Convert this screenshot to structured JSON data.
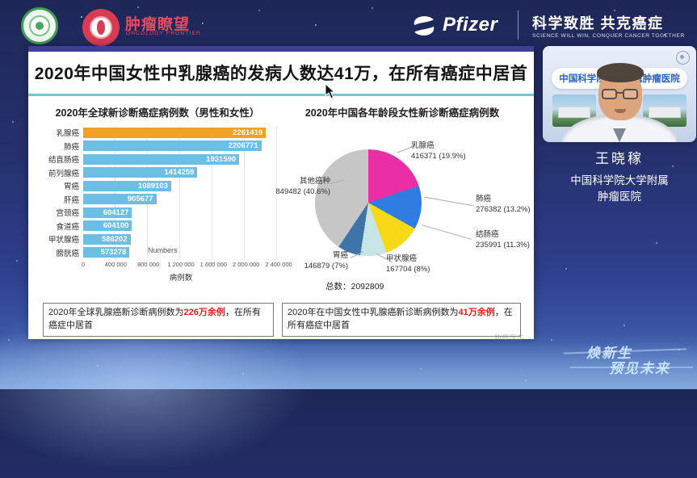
{
  "header": {
    "logo_red": {
      "name": "肿瘤瞭望",
      "sub": "ONCOLOGY FRONTIER"
    },
    "pfizer_label": "Pfizer",
    "slogan": "科学致胜 共克癌症",
    "slogan_sub": "SCIENCE WILL WIN, CONQUER CANCER TOGETHER"
  },
  "slide": {
    "title": "2020年中国女性中乳腺癌的发病人数达41万，在所有癌症中居首",
    "left_note_pre": "2020年全球乳腺癌新诊断病例数为",
    "left_note_highlight": "226万余例",
    "left_note_post": "，在所有癌症中居首",
    "right_note_pre": "2020年在中国女性中乳腺癌新诊断病例数为",
    "right_note_highlight": "41万余例",
    "right_note_post": "，在所有癌症中居首",
    "corner_watermark": "肿瘤医生"
  },
  "chart_data": [
    {
      "type": "bar",
      "orientation": "horizontal",
      "title": "2020年全球新诊断癌症病例数（男性和女性）",
      "categories": [
        "乳腺癌",
        "肺癌",
        "结直肠癌",
        "前列腺癌",
        "胃癌",
        "肝癌",
        "宫颈癌",
        "食道癌",
        "甲状腺癌",
        "膀胱癌"
      ],
      "values": [
        2261419,
        2206771,
        1931590,
        1414259,
        1089103,
        905677,
        604127,
        604100,
        586202,
        573278
      ],
      "colors": [
        "#f0a125",
        "#6cbfe4",
        "#6cbfe4",
        "#6cbfe4",
        "#6cbfe4",
        "#6cbfe4",
        "#6cbfe4",
        "#6cbfe4",
        "#6cbfe4",
        "#6cbfe4"
      ],
      "xlabel": "病例数",
      "x_ticks": [
        "0",
        "400 000",
        "800 000",
        "1 200 000",
        "1 600 000",
        "2 000 000",
        "2 400 000"
      ],
      "xlim": [
        0,
        2400000
      ],
      "grid": true,
      "annotation": "Numbers"
    },
    {
      "type": "pie",
      "title": "2020年中国各年龄段女性新诊断癌症病例数",
      "slices": [
        {
          "label": "乳腺癌",
          "value": 416371,
          "pct": "19.9%",
          "color": "#ea2fa5"
        },
        {
          "label": "肺癌",
          "value": 276382,
          "pct": "13.2%",
          "color": "#2e7de0"
        },
        {
          "label": "结肠癌",
          "value": 235991,
          "pct": "11.3%",
          "color": "#f7d918"
        },
        {
          "label": "甲状腺癌",
          "value": 167704,
          "pct": "8%",
          "color": "#c9e4e4"
        },
        {
          "label": "胃癌",
          "value": 146879,
          "pct": "7%",
          "color": "#3f74a8"
        },
        {
          "label": "其他癌种",
          "value": 849482,
          "pct": "40.6%",
          "color": "#c6c6c6"
        }
      ],
      "total_label": "总数：",
      "total": 2092809,
      "start_angle": "12-oclock, clockwise"
    }
  ],
  "video": {
    "banner": "中国科学院大学附属肿瘤医院",
    "speaker_name": "王晓稼",
    "affiliation_line1": "中国科学院大学附属",
    "affiliation_line2": "肿瘤医院"
  },
  "footer": {
    "watermark_line1": "焕新生",
    "watermark_line2": "预见未来"
  }
}
